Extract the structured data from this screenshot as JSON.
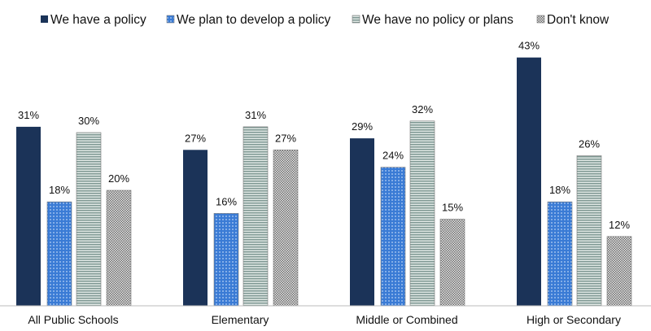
{
  "chart_data": {
    "type": "bar",
    "title": "",
    "xlabel": "",
    "ylabel": "",
    "ylim": [
      0,
      45
    ],
    "grid": false,
    "legend_position": "top",
    "categories": [
      "All Public Schools",
      "Elementary",
      "Middle or Combined",
      "High or Secondary"
    ],
    "series": [
      {
        "name": "We have a policy",
        "values": [
          31,
          27,
          29,
          43
        ],
        "color": "#1b3358",
        "pattern": "solid"
      },
      {
        "name": "We plan to develop a policy",
        "values": [
          18,
          16,
          24,
          18
        ],
        "color": "#3a7bd5",
        "pattern": "dots"
      },
      {
        "name": "We have no policy or plans",
        "values": [
          30,
          31,
          32,
          26
        ],
        "color": "#9fb3ad",
        "pattern": "hlines"
      },
      {
        "name": "Don't know",
        "values": [
          20,
          27,
          15,
          12
        ],
        "color": "#9a9a9a",
        "pattern": "checker"
      }
    ],
    "value_suffix": "%"
  }
}
